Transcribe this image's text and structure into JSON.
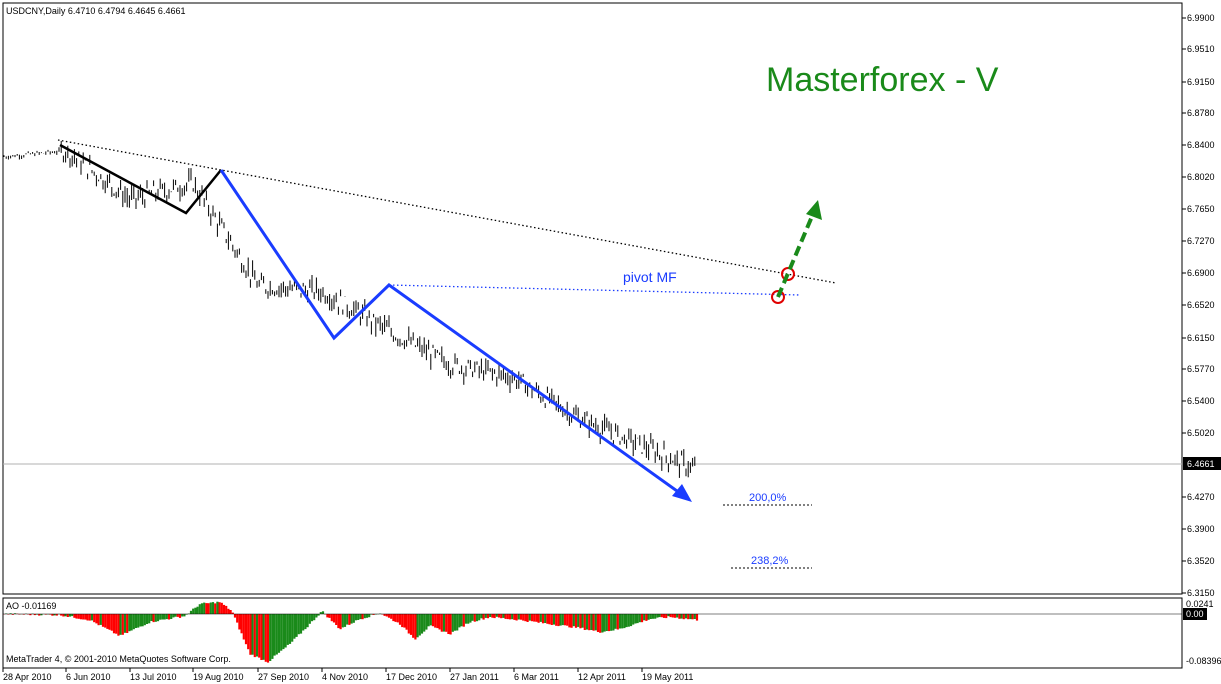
{
  "header": {
    "symbol_info": "USDCNY,Daily  6.4710 6.4794 6.4645 6.4661"
  },
  "watermark": {
    "text": "Masterforex - V",
    "color": "#1a8a1a"
  },
  "annotations": {
    "pivot_label": "pivot MF",
    "fib_200": "200,0%",
    "fib_238": "238,2%"
  },
  "indicator": {
    "label": "AO -0.01169",
    "axis_top": "0.0241",
    "axis_mid": "0.00",
    "axis_bottom": "-0.08396",
    "up_color": "#1a8a1a",
    "down_color": "#ff0000"
  },
  "copyright": "MetaTrader 4, © 2001-2010 MetaQuotes Software Corp.",
  "colors": {
    "price_bars": "#000000",
    "wave_blue": "#1a3cff",
    "wave_black": "#000000",
    "forecast_arrow": "#1a8a1a",
    "pivot_circle": "#e00000"
  },
  "chart_data": {
    "type": "bar",
    "symbol": "USDCNY",
    "timeframe": "Daily",
    "last_price": "6.4661",
    "y_ticks": [
      "6.9900",
      "6.9510",
      "6.9150",
      "6.8780",
      "6.8400",
      "6.8020",
      "6.7650",
      "6.7270",
      "6.6900",
      "6.6520",
      "6.6150",
      "6.5770",
      "6.5400",
      "6.5020",
      "6.4270",
      "6.3900",
      "6.3520",
      "6.3150"
    ],
    "ylim": [
      6.315,
      6.99
    ],
    "x_ticks": [
      "28 Apr 2010",
      "6 Jun 2010",
      "13 Jul 2010",
      "19 Aug 2010",
      "27 Sep 2010",
      "4 Nov 2010",
      "17 Dec 2010",
      "27 Jan 2011",
      "6 Mar 2011",
      "12 Apr 2011",
      "19 May 2011"
    ],
    "price_path": [
      [
        "28 Apr 2010",
        6.826
      ],
      [
        "6 Jun 2010",
        6.833
      ],
      [
        "13 Jul 2010",
        6.776
      ],
      [
        "19 Aug 2010",
        6.795
      ],
      [
        "27 Sep 2010",
        6.675
      ],
      [
        "4 Nov 2010",
        6.668
      ],
      [
        "17 Dec 2010",
        6.625
      ],
      [
        "27 Jan 2011",
        6.583
      ],
      [
        "6 Mar 2011",
        6.567
      ],
      [
        "12 Apr 2011",
        6.52
      ],
      [
        "19 May 2011",
        6.487
      ]
    ],
    "wave_points": [
      {
        "date": "6 Jun 2010",
        "price": 6.845
      },
      {
        "date": "13 Jul 2010",
        "price": 6.76
      },
      {
        "date": "19 Aug 2010",
        "price": 6.813
      },
      {
        "date": "4 Nov 2010",
        "price": 6.615
      },
      {
        "date": "17 Dec 2010",
        "price": 6.68
      },
      {
        "date": "19 May 2011",
        "price": 6.423
      }
    ],
    "ao": {
      "range": [
        -0.08396,
        0.0241
      ]
    }
  }
}
